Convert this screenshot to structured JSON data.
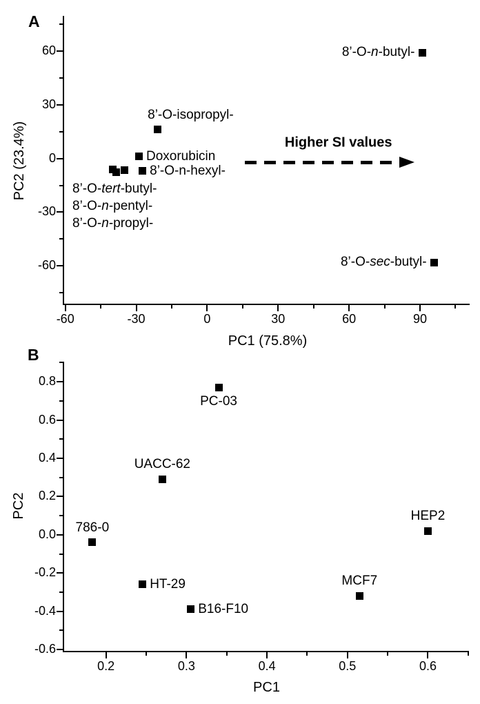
{
  "figure": {
    "background": "#ffffff",
    "ink": "#000000",
    "marker_shape": "filled-square"
  },
  "chart_data": [
    {
      "type": "scatter",
      "panel": "A",
      "xlabel": "PC1 (75.8%)",
      "ylabel": "PC2 (23.4%)",
      "xlim": [
        -60.5,
        111
      ],
      "ylim": [
        -81,
        79.5
      ],
      "xticks": [
        -60,
        -30,
        0,
        30,
        60,
        90
      ],
      "xtick_labels": [
        "-60",
        "-30",
        "0",
        "30",
        "60",
        "90"
      ],
      "xticks_minor": [
        -45,
        -15,
        15,
        45,
        75,
        105
      ],
      "yticks": [
        60,
        30,
        0,
        -30,
        -60
      ],
      "ytick_labels": [
        "60",
        "30",
        "0",
        "-30",
        "-60"
      ],
      "yticks_minor": [
        75,
        45,
        15,
        -15,
        -45,
        -75
      ],
      "grid": false,
      "points": [
        {
          "label": "8’-O-n-butyl-",
          "x": 91,
          "y": 59,
          "label_rich": [
            {
              "t": "8’-O-"
            },
            {
              "t": "n",
              "i": true
            },
            {
              "t": "-butyl-"
            }
          ],
          "label_pos": "left"
        },
        {
          "label": "8’-O-isopropyl-",
          "x": -21,
          "y": 16,
          "label_rich": [
            {
              "t": "8’-O-isopropyl-"
            }
          ],
          "label_pos": "above",
          "label_dx": 48
        },
        {
          "label": "Doxorubicin",
          "x": -29,
          "y": 1,
          "label_rich": [
            {
              "t": "Doxorubicin"
            }
          ],
          "label_pos": "right"
        },
        {
          "label": "8’-O-n-hexyl-",
          "x": -27.5,
          "y": -7,
          "label_rich": [
            {
              "t": "8’-O-n-hexyl-"
            }
          ],
          "label_pos": "right"
        },
        {
          "label": "8’-O-tert-butyl-",
          "x": -40,
          "y": -6,
          "label_rich": [],
          "label_pos": "none"
        },
        {
          "label": "8’-O-n-pentyl-",
          "x": -38.5,
          "y": -7.5,
          "label_rich": [],
          "label_pos": "none"
        },
        {
          "label": "8’-O-n-propyl-",
          "x": -35,
          "y": -6.5,
          "label_rich": [],
          "label_pos": "none"
        },
        {
          "label": "8’-O-sec-butyl-",
          "x": 96,
          "y": -58,
          "label_rich": [
            {
              "t": "8’-O-"
            },
            {
              "t": "sec",
              "i": true
            },
            {
              "t": "-butyl-"
            }
          ],
          "label_pos": "left"
        }
      ],
      "stacked_labels": {
        "x": -57,
        "y": -12,
        "lines": [
          [
            {
              "t": "8’-O-"
            },
            {
              "t": "tert",
              "i": true
            },
            {
              "t": "-butyl-"
            }
          ],
          [
            {
              "t": "8’-O-"
            },
            {
              "t": "n",
              "i": true
            },
            {
              "t": "-pentyl-"
            }
          ],
          [
            {
              "t": "8’-O-"
            },
            {
              "t": "n",
              "i": true
            },
            {
              "t": "-propyl-"
            }
          ]
        ]
      },
      "annotation": {
        "text": "Higher SI values",
        "arrow_y": -2,
        "arrow_x_start": 16,
        "arrow_x_end": 88,
        "text_x": 55.5,
        "text_y": 8.5
      }
    },
    {
      "type": "scatter",
      "panel": "B",
      "xlabel": "PC1",
      "ylabel": "PC2",
      "xlim": [
        0.148,
        0.651
      ],
      "ylim": [
        -0.607,
        0.905
      ],
      "xticks": [
        0.2,
        0.3,
        0.4,
        0.5,
        0.6
      ],
      "xtick_labels": [
        "0.2",
        "0.3",
        "0.4",
        "0.5",
        "0.6"
      ],
      "xticks_minor": [
        0.25,
        0.35,
        0.45,
        0.55,
        0.65
      ],
      "yticks": [
        0.8,
        0.6,
        0.4,
        0.2,
        0.0,
        -0.2,
        -0.4,
        -0.6
      ],
      "ytick_labels": [
        "0.8",
        "0.6",
        "0.4",
        "0.2",
        "0.0",
        "-0.2",
        "-0.4",
        "-0.6"
      ],
      "yticks_minor": [
        0.9,
        0.7,
        0.5,
        0.3,
        0.1,
        -0.1,
        -0.3,
        -0.5
      ],
      "grid": false,
      "points": [
        {
          "label": "PC-03",
          "x": 0.34,
          "y": 0.77,
          "label_rich": [
            {
              "t": "PC-03"
            }
          ],
          "label_pos": "below"
        },
        {
          "label": "UACC-62",
          "x": 0.27,
          "y": 0.29,
          "label_rich": [
            {
              "t": "UACC-62"
            }
          ],
          "label_pos": "above"
        },
        {
          "label": "786-0",
          "x": 0.183,
          "y": -0.04,
          "label_rich": [
            {
              "t": "786-0"
            }
          ],
          "label_pos": "above"
        },
        {
          "label": "HT-29",
          "x": 0.245,
          "y": -0.26,
          "label_rich": [
            {
              "t": "HT-29"
            }
          ],
          "label_pos": "right"
        },
        {
          "label": "B16-F10",
          "x": 0.305,
          "y": -0.39,
          "label_rich": [
            {
              "t": "B16-F10"
            }
          ],
          "label_pos": "right"
        },
        {
          "label": "MCF7",
          "x": 0.515,
          "y": -0.32,
          "label_rich": [
            {
              "t": "MCF7"
            }
          ],
          "label_pos": "above"
        },
        {
          "label": "HEP2",
          "x": 0.6,
          "y": 0.02,
          "label_rich": [
            {
              "t": "HEP2"
            }
          ],
          "label_pos": "above"
        }
      ]
    }
  ]
}
